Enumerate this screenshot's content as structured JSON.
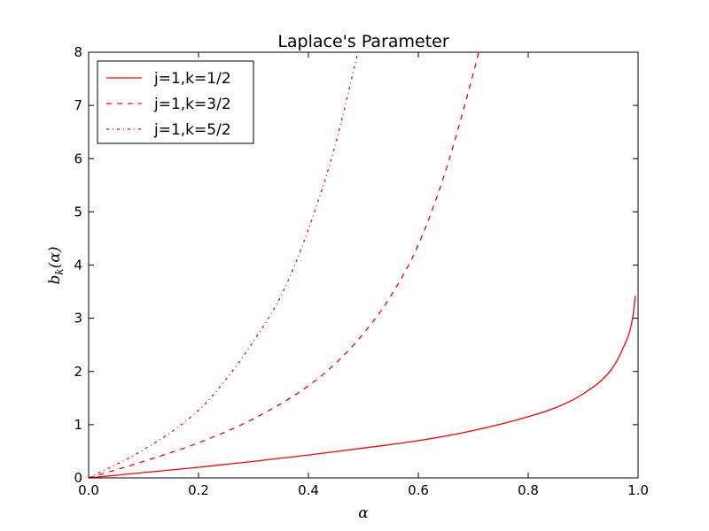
{
  "chart_data": {
    "type": "line",
    "title": "Laplace's Parameter",
    "xlabel": "α",
    "ylabel": "b_k(α)",
    "xlim": [
      0,
      1
    ],
    "ylim": [
      0,
      8
    ],
    "x_ticks": [
      "0.0",
      "0.2",
      "0.4",
      "0.6",
      "0.8",
      "1.0"
    ],
    "y_ticks": [
      "0",
      "1",
      "2",
      "3",
      "4",
      "5",
      "6",
      "7",
      "8"
    ],
    "grid": false,
    "legend_position": "top-left",
    "series": [
      {
        "name": "j=1,k=1/2",
        "style": "solid",
        "color": "#ff0000",
        "x": [
          0,
          0.1,
          0.2,
          0.3,
          0.4,
          0.5,
          0.6,
          0.7,
          0.8,
          0.85,
          0.9,
          0.95,
          0.97,
          0.99,
          0.995
        ],
        "y": [
          0,
          0.1,
          0.2,
          0.31,
          0.43,
          0.56,
          0.7,
          0.89,
          1.15,
          1.32,
          1.58,
          2.02,
          2.38,
          3.0,
          3.42
        ]
      },
      {
        "name": "j=1,k=3/2",
        "style": "dashed",
        "color": "#ff0000",
        "x": [
          0,
          0.1,
          0.2,
          0.3,
          0.4,
          0.45,
          0.5,
          0.55,
          0.6,
          0.65,
          0.7,
          0.71
        ],
        "y": [
          0,
          0.31,
          0.66,
          1.11,
          1.73,
          2.16,
          2.71,
          3.42,
          4.38,
          5.78,
          7.6,
          8.0
        ]
      },
      {
        "name": "j=1,k=5/2",
        "style": "dashdot",
        "color": "#ff0000",
        "x": [
          0,
          0.1,
          0.2,
          0.25,
          0.3,
          0.35,
          0.4,
          0.45,
          0.49
        ],
        "y": [
          0,
          0.53,
          1.27,
          1.85,
          2.57,
          3.42,
          4.67,
          6.3,
          8.0
        ]
      }
    ]
  }
}
